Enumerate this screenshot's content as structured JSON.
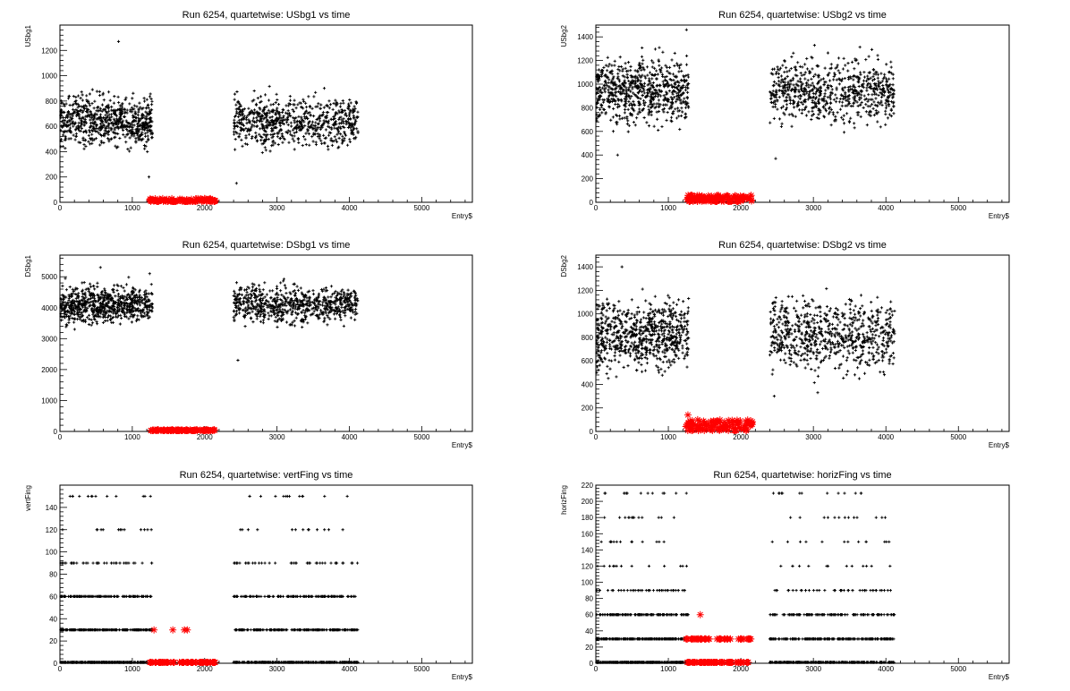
{
  "colors": {
    "black_marker": "#000000",
    "red_marker": "#ff0000",
    "frame": "#000000",
    "background": "#ffffff"
  },
  "chart_data": [
    {
      "type": "scatter",
      "title": "Run 6254, quartetwise: USbg1 vs time",
      "xlabel": "Entry$",
      "ylabel": "USbg1",
      "xlim": [
        0,
        5700
      ],
      "ylim": [
        0,
        1400
      ],
      "xticks": [
        0,
        1000,
        2000,
        3000,
        4000,
        5000
      ],
      "yticks": [
        0,
        200,
        400,
        600,
        800,
        1000,
        1200
      ],
      "grid": false,
      "series": [
        {
          "marker": "plus",
          "color": "#000000",
          "x_range": [
            [
              0,
              1280
            ],
            [
              2400,
              4120
            ]
          ],
          "y_range": [
            380,
            900
          ],
          "outliers": [
            [
              810,
              1270
            ],
            [
              1230,
              200
            ],
            [
              2440,
              150
            ]
          ]
        },
        {
          "marker": "star",
          "color": "#ff0000",
          "x_range": [
            [
              1240,
              2160
            ]
          ],
          "y_range": [
            0,
            30
          ]
        }
      ]
    },
    {
      "type": "scatter",
      "title": "Run 6254, quartetwise: USbg2 vs time",
      "xlabel": "Entry$",
      "ylabel": "USbg2",
      "xlim": [
        0,
        5700
      ],
      "ylim": [
        0,
        1500
      ],
      "xticks": [
        0,
        1000,
        2000,
        3000,
        4000,
        5000
      ],
      "yticks": [
        0,
        200,
        400,
        600,
        800,
        1000,
        1200,
        1400
      ],
      "grid": false,
      "series": [
        {
          "marker": "plus",
          "color": "#000000",
          "x_range": [
            [
              0,
              1280
            ],
            [
              2400,
              4120
            ]
          ],
          "y_range": [
            580,
            1300
          ],
          "outliers": [
            [
              1250,
              1460
            ],
            [
              2480,
              370
            ],
            [
              300,
              400
            ]
          ]
        },
        {
          "marker": "star",
          "color": "#ff0000",
          "x_range": [
            [
              1240,
              2160
            ]
          ],
          "y_range": [
            0,
            60
          ]
        }
      ]
    },
    {
      "type": "scatter",
      "title": "Run 6254, quartetwise: DSbg1 vs time",
      "xlabel": "Entry$",
      "ylabel": "DSbg1",
      "xlim": [
        0,
        5700
      ],
      "ylim": [
        0,
        5700
      ],
      "xticks": [
        0,
        1000,
        2000,
        3000,
        4000,
        5000
      ],
      "yticks": [
        0,
        1000,
        2000,
        3000,
        4000,
        5000
      ],
      "grid": false,
      "series": [
        {
          "marker": "plus",
          "color": "#000000",
          "x_range": [
            [
              0,
              1280
            ],
            [
              2400,
              4120
            ]
          ],
          "y_range": [
            3300,
            4900
          ],
          "outliers": [
            [
              560,
              5300
            ],
            [
              1240,
              5100
            ],
            [
              2460,
              2300
            ]
          ]
        },
        {
          "marker": "star",
          "color": "#ff0000",
          "x_range": [
            [
              1240,
              2160
            ]
          ],
          "y_range": [
            0,
            60
          ]
        }
      ]
    },
    {
      "type": "scatter",
      "title": "Run 6254, quartetwise: DSbg2 vs time",
      "xlabel": "Entry$",
      "ylabel": "DSbg2",
      "xlim": [
        0,
        5700
      ],
      "ylim": [
        0,
        1500
      ],
      "xticks": [
        0,
        1000,
        2000,
        3000,
        4000,
        5000
      ],
      "yticks": [
        0,
        200,
        400,
        600,
        800,
        1000,
        1200,
        1400
      ],
      "grid": false,
      "series": [
        {
          "marker": "plus",
          "color": "#000000",
          "x_range": [
            [
              0,
              1280
            ],
            [
              2400,
              4120
            ]
          ],
          "y_range": [
            430,
            1220
          ],
          "outliers": [
            [
              360,
              1400
            ],
            [
              2460,
              300
            ],
            [
              3060,
              330
            ]
          ]
        },
        {
          "marker": "star",
          "color": "#ff0000",
          "x_range": [
            [
              1240,
              2160
            ]
          ],
          "y_range": [
            0,
            100
          ],
          "outliers": [
            [
              1270,
              140
            ]
          ]
        }
      ]
    },
    {
      "type": "scatter",
      "title": "Run 6254, quartetwise: vertFing vs time",
      "xlabel": "Entry$",
      "ylabel": "vertFing",
      "xlim": [
        0,
        5700
      ],
      "ylim": [
        0,
        160
      ],
      "xticks": [
        0,
        1000,
        2000,
        3000,
        4000,
        5000
      ],
      "yticks": [
        0,
        20,
        40,
        60,
        80,
        100,
        120,
        140
      ],
      "grid": false,
      "levels": [
        0,
        30,
        60,
        90,
        120,
        150
      ],
      "series": [
        {
          "marker": "plus",
          "color": "#000000",
          "x_range": [
            [
              0,
              1280
            ],
            [
              2400,
              4120
            ]
          ],
          "y_levels": [
            0,
            30,
            60,
            90,
            120,
            150
          ]
        },
        {
          "marker": "star",
          "color": "#ff0000",
          "x_range": [
            [
              1240,
              2160
            ]
          ],
          "y_levels": [
            0
          ],
          "outliers": [
            [
              1300,
              30
            ],
            [
              1560,
              30
            ],
            [
              1720,
              30
            ],
            [
              1760,
              30
            ]
          ]
        }
      ]
    },
    {
      "type": "scatter",
      "title": "Run 6254, quartetwise: horizFing vs time",
      "xlabel": "Entry$",
      "ylabel": "horizFing",
      "xlim": [
        0,
        5700
      ],
      "ylim": [
        0,
        220
      ],
      "xticks": [
        0,
        1000,
        2000,
        3000,
        4000,
        5000
      ],
      "yticks": [
        0,
        20,
        40,
        60,
        80,
        100,
        120,
        140,
        160,
        180,
        200,
        220
      ],
      "grid": false,
      "series": [
        {
          "marker": "plus",
          "color": "#000000",
          "x_range": [
            [
              0,
              1280
            ],
            [
              2400,
              4120
            ]
          ],
          "y_levels": [
            0,
            30,
            60,
            90,
            120,
            150,
            180,
            210
          ]
        },
        {
          "marker": "star",
          "color": "#ff0000",
          "x_range": [
            [
              1240,
              2160
            ]
          ],
          "y_levels": [
            0,
            30
          ],
          "outliers": [
            [
              1440,
              60
            ]
          ]
        }
      ]
    }
  ]
}
